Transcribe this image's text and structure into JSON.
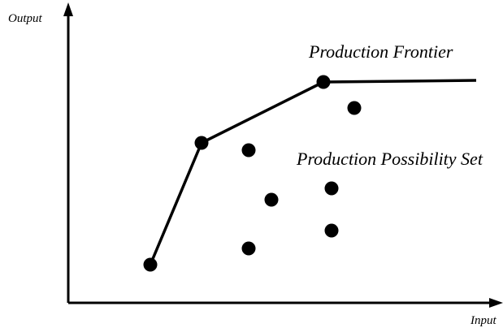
{
  "axes": {
    "y_label": "Output",
    "x_label": "Input"
  },
  "labels": {
    "frontier": "Production Frontier",
    "possibility_set": "Production Possibility Set"
  },
  "colors": {
    "ink": "#000000",
    "background": "#ffffff"
  },
  "frontier_points": [
    {
      "id": "frontier-point-1"
    },
    {
      "id": "frontier-point-2"
    },
    {
      "id": "frontier-point-3"
    }
  ],
  "interior_points": [
    {
      "id": "interior-point-1"
    },
    {
      "id": "interior-point-2"
    },
    {
      "id": "interior-point-3"
    },
    {
      "id": "interior-point-4"
    },
    {
      "id": "interior-point-5"
    },
    {
      "id": "interior-point-6"
    }
  ]
}
